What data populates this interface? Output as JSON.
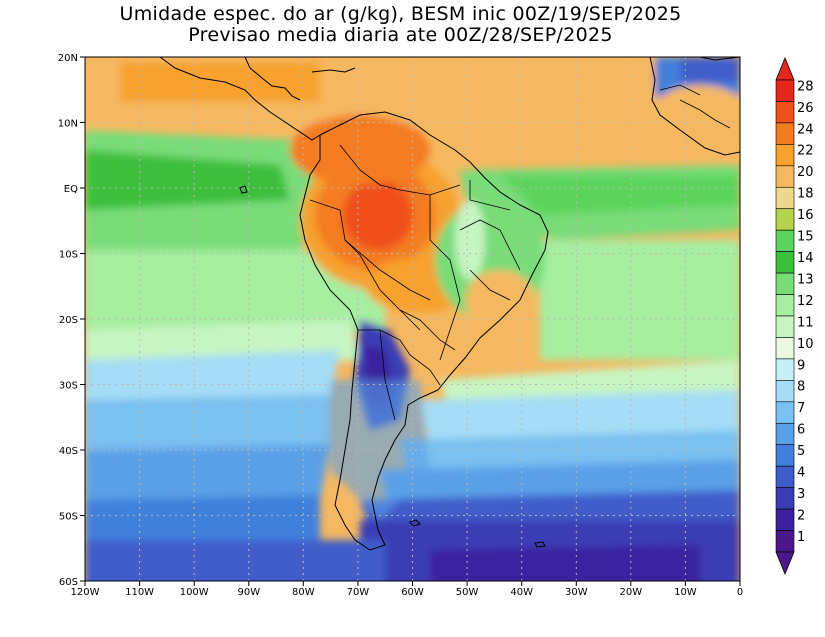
{
  "title_line1": "Umidade espec. do ar (g/kg), BESM inic 00Z/19/SEP/2025",
  "title_line2": "Previsao media diaria ate 00Z/28/SEP/2025",
  "lon_ticks": [
    "120W",
    "110W",
    "100W",
    "90W",
    "80W",
    "70W",
    "60W",
    "50W",
    "40W",
    "30W",
    "20W",
    "10W",
    "0"
  ],
  "lat_ticks": [
    "20N",
    "10N",
    "EQ",
    "10S",
    "20S",
    "30S",
    "40S",
    "50S",
    "60S"
  ],
  "colorbar": {
    "labels": [
      "28",
      "26",
      "24",
      "22",
      "20",
      "18",
      "16",
      "15",
      "14",
      "13",
      "12",
      "11",
      "10",
      "9",
      "8",
      "7",
      "6",
      "5",
      "4",
      "3",
      "2",
      "1"
    ],
    "colors": [
      "#e4261c",
      "#f0501a",
      "#f47c20",
      "#f7a12e",
      "#f5b860",
      "#eed98e",
      "#b8d24f",
      "#5cd45c",
      "#3cbf3c",
      "#79dc79",
      "#a6eea0",
      "#c7f5c2",
      "#e8fbe0",
      "#c8f0f8",
      "#a4ddf5",
      "#7ac0f0",
      "#5aa0e8",
      "#3f80da",
      "#3f5dca",
      "#3a3cb5",
      "#3a219e",
      "#4a1888"
    ]
  },
  "map_fields": [
    "specific-humidity-field",
    "coastlines",
    "country-borders",
    "gridlines"
  ]
}
